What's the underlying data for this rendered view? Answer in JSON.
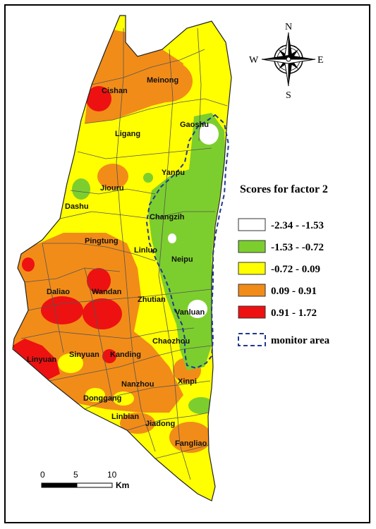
{
  "legend": {
    "title": "Scores for factor 2",
    "classes": [
      {
        "label": "-2.34 - -1.53",
        "color": "#ffffff"
      },
      {
        "label": "-1.53 - -0.72",
        "color": "#7cce2e"
      },
      {
        "label": "-0.72 - 0.09",
        "color": "#ffff00"
      },
      {
        "label": "0.09 - 0.91",
        "color": "#f28c18"
      },
      {
        "label": "0.91 - 1.72",
        "color": "#ee1111"
      }
    ],
    "monitor_label": "monitor  area"
  },
  "compass": {
    "n": "N",
    "s": "S",
    "e": "E",
    "w": "W"
  },
  "scale": {
    "ticks": [
      "0",
      "5",
      "10"
    ],
    "unit": "Km"
  },
  "towns": {
    "meinong": "Meinong",
    "cishan": "Cishan",
    "gaoshu": "Gaoshu",
    "ligang": "Ligang",
    "yanpu": "Yanpu",
    "jiouru": "Jiouru",
    "dashu": "Dashu",
    "changzih": "Changzih",
    "pingtung": "Pingtung",
    "linluo": "Linluo",
    "neipu": "Neipu",
    "daliao": "Daliao",
    "wandan": "Wandan",
    "zhutian": "Zhutian",
    "vanluan": "Vanluan",
    "chaozhou": "Chaozhou",
    "sinyuan": "Sinyuan",
    "kanding": "Kanding",
    "linyuan": "Linyuan",
    "nanzhou": "Nanzhou",
    "xinpi": "Xinpi",
    "donggang": "Donggang",
    "linbian": "Linbian",
    "jiadong": "Jiadong",
    "fangliao": "Fangliao"
  }
}
